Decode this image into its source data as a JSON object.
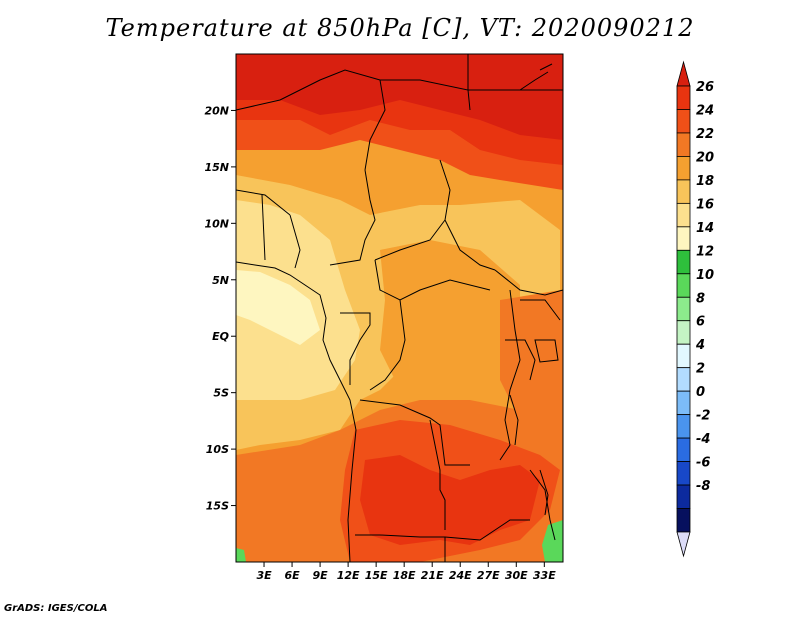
{
  "title": "Temperature at 850hPa [C], VT: 2020090212",
  "credit": "GrADS: IGES/COLA",
  "map": {
    "variable": "Temperature at 850hPa",
    "units": "C",
    "valid_time": "2020090212",
    "region": "Central Africa",
    "lon_range": [
      0,
      35
    ],
    "lat_range": [
      -20,
      25
    ],
    "lat_ticks": [
      {
        "value": 20,
        "label": "20N"
      },
      {
        "value": 15,
        "label": "15N"
      },
      {
        "value": 10,
        "label": "10N"
      },
      {
        "value": 5,
        "label": "5N"
      },
      {
        "value": 0,
        "label": "EQ"
      },
      {
        "value": -5,
        "label": "5S"
      },
      {
        "value": -10,
        "label": "10S"
      },
      {
        "value": -15,
        "label": "15S"
      }
    ],
    "lon_ticks": [
      {
        "value": 3,
        "label": "3E"
      },
      {
        "value": 6,
        "label": "6E"
      },
      {
        "value": 9,
        "label": "9E"
      },
      {
        "value": 12,
        "label": "12E"
      },
      {
        "value": 15,
        "label": "15E"
      },
      {
        "value": 18,
        "label": "18E"
      },
      {
        "value": 21,
        "label": "21E"
      },
      {
        "value": 24,
        "label": "24E"
      },
      {
        "value": 27,
        "label": "27E"
      },
      {
        "value": 30,
        "label": "30E"
      },
      {
        "value": 33,
        "label": "33E"
      }
    ]
  },
  "colorbar": {
    "labels": [
      "26",
      "24",
      "22",
      "20",
      "18",
      "16",
      "14",
      "12",
      "10",
      "8",
      "6",
      "4",
      "2",
      "0",
      "-2",
      "-4",
      "-6",
      "-8"
    ],
    "colors": [
      "#d82010",
      "#e83410",
      "#f05018",
      "#f27824",
      "#f5a030",
      "#f8c45a",
      "#fce08e",
      "#fef6c0",
      "#2ebf3c",
      "#5ad85a",
      "#8ceb8c",
      "#c4f4c4",
      "#e2f8ff",
      "#b2dcff",
      "#7cbcf8",
      "#4a94ee",
      "#2a6ce2",
      "#1848c8",
      "#0c2a9e",
      "#06105e",
      "#dcdcf8"
    ]
  },
  "colors": {
    "ocean_and_west": "#f8c45a",
    "north_hot": "#d82010",
    "south_hot": "#e83410"
  }
}
